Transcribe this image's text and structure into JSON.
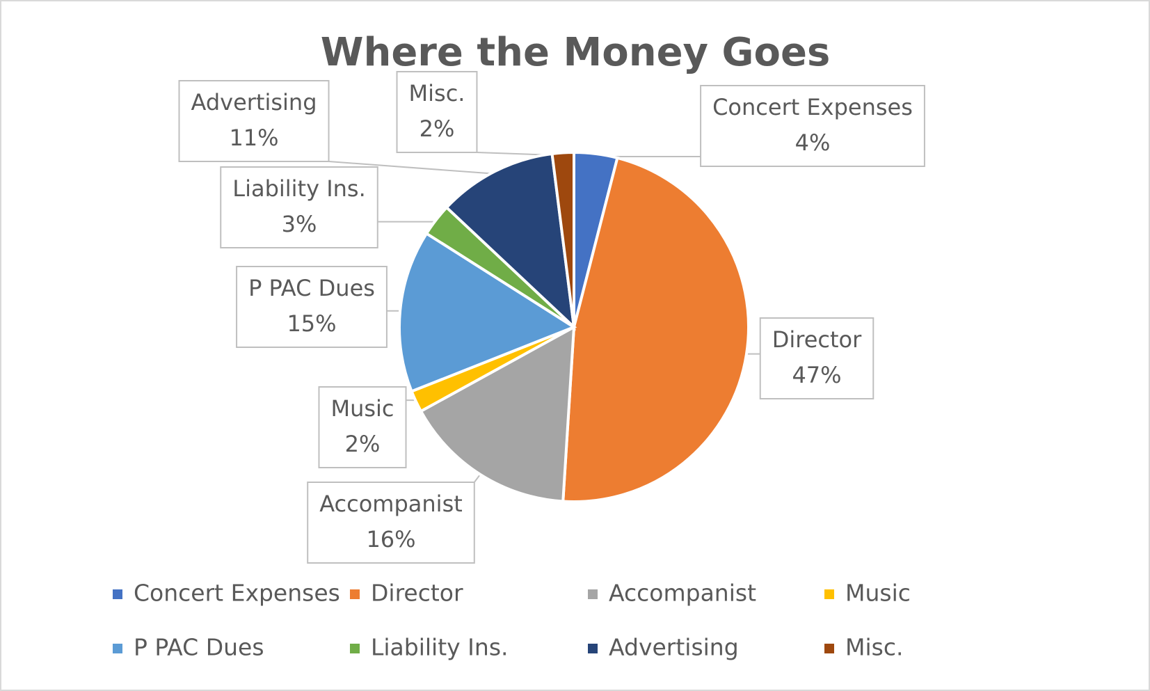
{
  "chart_data": {
    "type": "pie",
    "title": "Where the Money Goes",
    "categories": [
      "Concert Expenses",
      "Director",
      "Accompanist",
      "Music",
      "P PAC Dues",
      "Liability Ins.",
      "Advertising",
      "Misc."
    ],
    "values": [
      4,
      47,
      16,
      2,
      15,
      3,
      11,
      2
    ],
    "value_labels": [
      "4%",
      "47%",
      "16%",
      "2%",
      "15%",
      "3%",
      "11%",
      "2%"
    ],
    "colors": [
      "#4472c4",
      "#ed7d31",
      "#a5a5a5",
      "#ffc000",
      "#5b9bd5",
      "#70ad47",
      "#264478",
      "#9e480e"
    ],
    "legend": "bottom"
  }
}
